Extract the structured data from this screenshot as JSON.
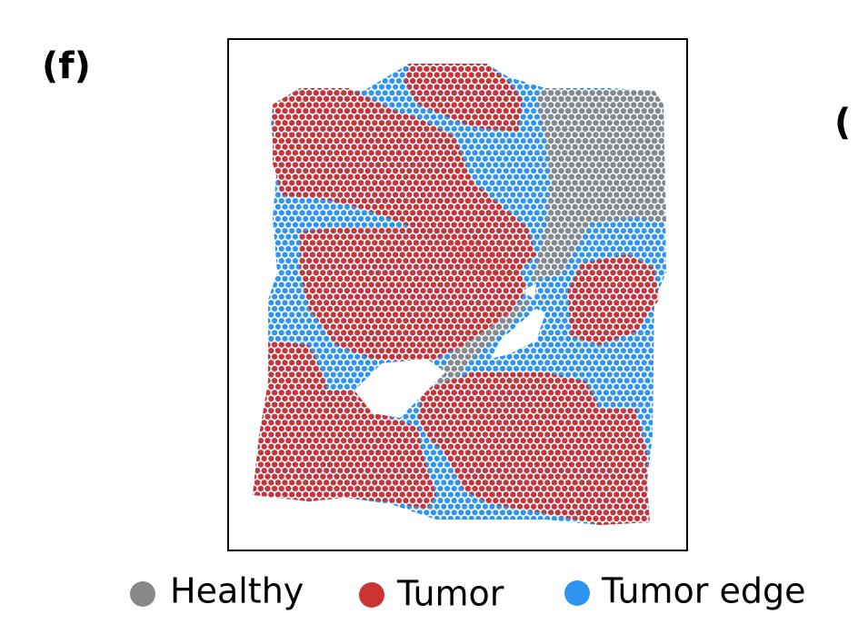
{
  "panel_label": "(f)",
  "next_panel_label": "(",
  "legend": [
    "Healthy",
    "Tumor",
    "Tumor edge"
  ]
}
